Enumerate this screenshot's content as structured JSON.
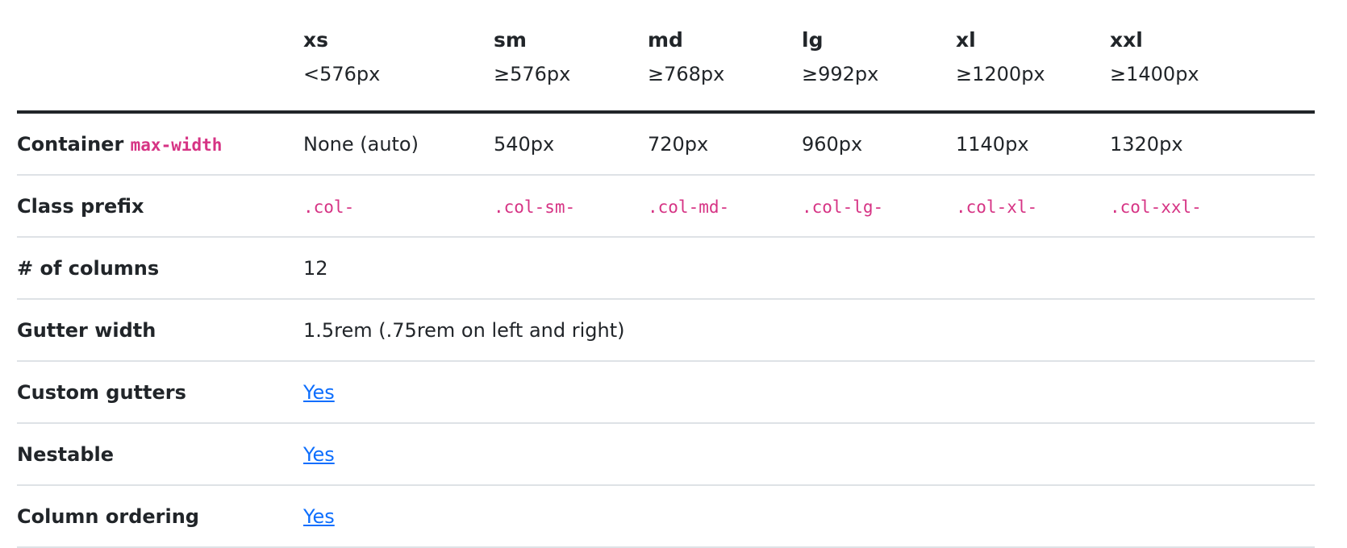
{
  "header": {
    "breakpoints": [
      {
        "name": "xs",
        "size": "<576px"
      },
      {
        "name": "sm",
        "size": "≥576px"
      },
      {
        "name": "md",
        "size": "≥768px"
      },
      {
        "name": "lg",
        "size": "≥992px"
      },
      {
        "name": "xl",
        "size": "≥1200px"
      },
      {
        "name": "xxl",
        "size": "≥1400px"
      }
    ]
  },
  "rows": {
    "container": {
      "label": "Container",
      "label_code": "max-width",
      "values": [
        "None (auto)",
        "540px",
        "720px",
        "960px",
        "1140px",
        "1320px"
      ]
    },
    "class_prefix": {
      "label": "Class prefix",
      "values": [
        ".col-",
        ".col-sm-",
        ".col-md-",
        ".col-lg-",
        ".col-xl-",
        ".col-xxl-"
      ]
    },
    "columns": {
      "label": "# of columns",
      "value": "12"
    },
    "gutter_width": {
      "label": "Gutter width",
      "value": "1.5rem (.75rem on left and right)"
    },
    "custom_gutters": {
      "label": "Custom gutters",
      "value": "Yes"
    },
    "nestable": {
      "label": "Nestable",
      "value": "Yes"
    },
    "column_ordering": {
      "label": "Column ordering",
      "value": "Yes"
    }
  },
  "colors": {
    "code": "#d63384",
    "link": "#0d6efd",
    "border": "#dee2e6",
    "text": "#212529"
  }
}
